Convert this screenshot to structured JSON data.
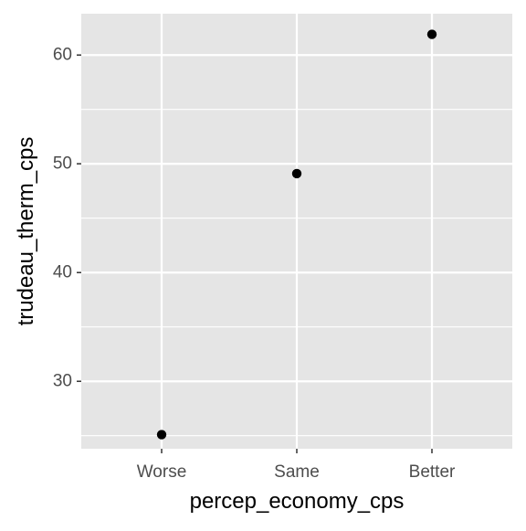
{
  "chart_data": {
    "type": "scatter",
    "title": "",
    "xlabel": "percep_economy_cps",
    "ylabel": "trudeau_therm_cps",
    "categories": [
      "Worse",
      "Same",
      "Better"
    ],
    "series": [
      {
        "x": [
          "Worse",
          "Same",
          "Better"
        ],
        "values": [
          25.1,
          49.1,
          61.9
        ]
      }
    ],
    "ylim": [
      23.8,
      63.8
    ],
    "y_ticks": [
      30,
      40,
      50,
      60
    ],
    "y_tick_labels": [
      "30",
      "40",
      "50",
      "60"
    ],
    "y_minor_ticks": [
      25,
      35,
      45,
      55
    ],
    "grid": true,
    "legend": "none",
    "colors": {
      "panel_background": "#e5e5e5",
      "grid_line": "#ffffff",
      "point": "#000000",
      "tick_mark": "#333333",
      "tick_label": "#4d4d4d",
      "axis_title": "#000000"
    }
  }
}
